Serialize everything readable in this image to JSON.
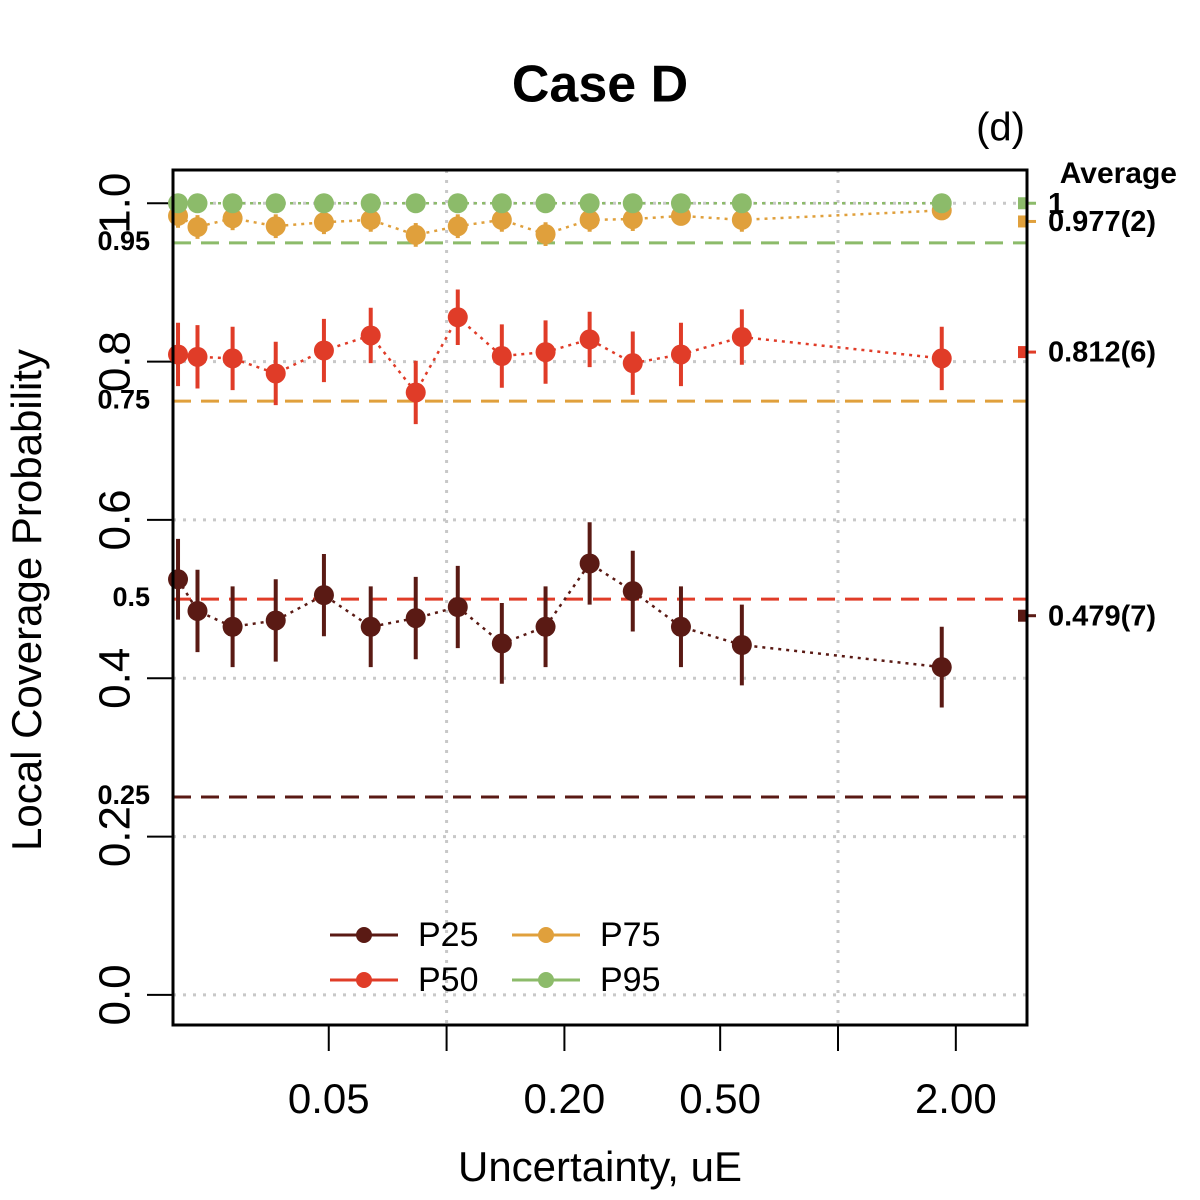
{
  "chart_data": {
    "type": "errorbar",
    "title": "Case D",
    "annotation": "(d)",
    "xlabel": "Uncertainty, uE",
    "ylabel": "Local Coverage Probability",
    "average_title": "Average",
    "xscale": "log",
    "xlim": [
      0.02,
      3.04
    ],
    "ylim": [
      -0.038,
      1.042
    ],
    "xticks": [
      {
        "value": 0.05,
        "label": "0.05"
      },
      {
        "value": 0.2,
        "label": "0.20"
      },
      {
        "value": 0.5,
        "label": "0.50"
      },
      {
        "value": 2,
        "label": "2.00"
      }
    ],
    "xgrid": [
      0.1,
      1
    ],
    "yticks": [
      {
        "value": 0,
        "label": "0.0"
      },
      0.2,
      0.4,
      0.6,
      0.8,
      {
        "value": 1,
        "label": "1.0"
      }
    ],
    "grid": true,
    "x": [
      0.0206,
      0.0231,
      0.0284,
      0.0366,
      0.0486,
      0.064,
      0.0834,
      0.1068,
      0.1384,
      0.179,
      0.232,
      0.299,
      0.397,
      0.568,
      1.841
    ],
    "series": [
      {
        "name": "P25",
        "color": "#5a1a14",
        "reference": 0.25,
        "average": 0.479,
        "average_label": "0.479(7)",
        "values": [
          0.525,
          0.485,
          0.465,
          0.473,
          0.505,
          0.465,
          0.476,
          0.49,
          0.444,
          0.465,
          0.545,
          0.51,
          0.465,
          0.442,
          0.414
        ],
        "errors": [
          0.051,
          0.052,
          0.051,
          0.052,
          0.052,
          0.051,
          0.052,
          0.052,
          0.051,
          0.051,
          0.052,
          0.051,
          0.051,
          0.051,
          0.051
        ]
      },
      {
        "name": "P50",
        "color": "#e03c28",
        "reference": 0.5,
        "average": 0.812,
        "average_label": "0.812(6)",
        "values": [
          0.809,
          0.806,
          0.804,
          0.785,
          0.814,
          0.833,
          0.761,
          0.856,
          0.807,
          0.812,
          0.828,
          0.798,
          0.809,
          0.831,
          0.804
        ],
        "errors": [
          0.04,
          0.04,
          0.04,
          0.04,
          0.04,
          0.035,
          0.04,
          0.035,
          0.04,
          0.04,
          0.035,
          0.04,
          0.04,
          0.035,
          0.04
        ]
      },
      {
        "name": "P75",
        "color": "#e0a03c",
        "reference": 0.75,
        "average": 0.977,
        "average_label": "0.977(2)",
        "values": [
          0.984,
          0.97,
          0.981,
          0.971,
          0.976,
          0.979,
          0.96,
          0.971,
          0.979,
          0.961,
          0.979,
          0.98,
          0.984,
          0.979,
          0.991
        ],
        "errors": [
          0.015,
          0.015,
          0.015,
          0.015,
          0.015,
          0.015,
          0.015,
          0.015,
          0.015,
          0.015,
          0.015,
          0.015,
          0.01,
          0.015,
          0.01
        ]
      },
      {
        "name": "P95",
        "color": "#8cbb6a",
        "reference": 0.95,
        "average": 1,
        "average_label": "1",
        "values": [
          1,
          1,
          1,
          1,
          1,
          1,
          1,
          1,
          1,
          1,
          1,
          1,
          1,
          1,
          1
        ],
        "errors": [
          0,
          0,
          0,
          0,
          0,
          0,
          0,
          0,
          0,
          0,
          0,
          0,
          0,
          0,
          0
        ]
      }
    ]
  }
}
